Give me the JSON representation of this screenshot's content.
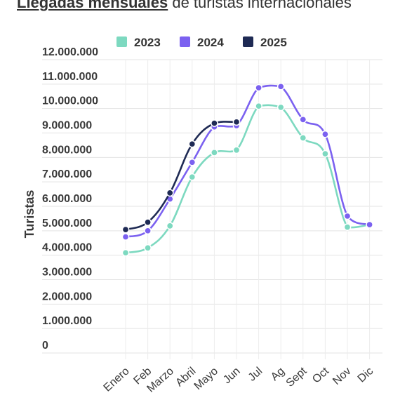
{
  "header": {
    "title_strong": "Llegadas mensuales",
    "title_rest": " de turistas internacionales"
  },
  "chart_data": {
    "type": "line",
    "title": "Llegadas mensuales de turistas internacionales",
    "xlabel": "",
    "ylabel": "Turistas",
    "categories": [
      "Enero",
      "Feb",
      "Marzo",
      "Abril",
      "Mayo",
      "Jun",
      "Jul",
      "Ag",
      "Sept",
      "Oct",
      "Nov",
      "Dic"
    ],
    "ylim": [
      0,
      12000000
    ],
    "yticks": [
      0,
      1000000,
      2000000,
      3000000,
      4000000,
      5000000,
      6000000,
      7000000,
      8000000,
      9000000,
      10000000,
      11000000,
      12000000
    ],
    "ytick_labels": [
      "0",
      "1.000.000",
      "2.000.000",
      "3.000.000",
      "4.000.000",
      "5.000.000",
      "6.000.000",
      "7.000.000",
      "8.000.000",
      "9.000.000",
      "10.000.000",
      "11.000.000",
      "12.000.000"
    ],
    "grid": true,
    "legend_position": "top",
    "series": [
      {
        "name": "2023",
        "color": "#7dd9c0",
        "values": [
          4100000,
          4300000,
          5200000,
          7200000,
          8200000,
          8300000,
          10100000,
          10050000,
          8800000,
          8150000,
          5150000,
          5250000
        ]
      },
      {
        "name": "2024",
        "color": "#7b61f0",
        "values": [
          4750000,
          5000000,
          6300000,
          7800000,
          9250000,
          9300000,
          10850000,
          10900000,
          9550000,
          8950000,
          5600000,
          5250000
        ]
      },
      {
        "name": "2025",
        "color": "#1e2a54",
        "values": [
          5050000,
          5350000,
          6550000,
          8550000,
          9400000,
          9450000,
          null,
          null,
          null,
          null,
          null,
          null
        ]
      }
    ]
  }
}
